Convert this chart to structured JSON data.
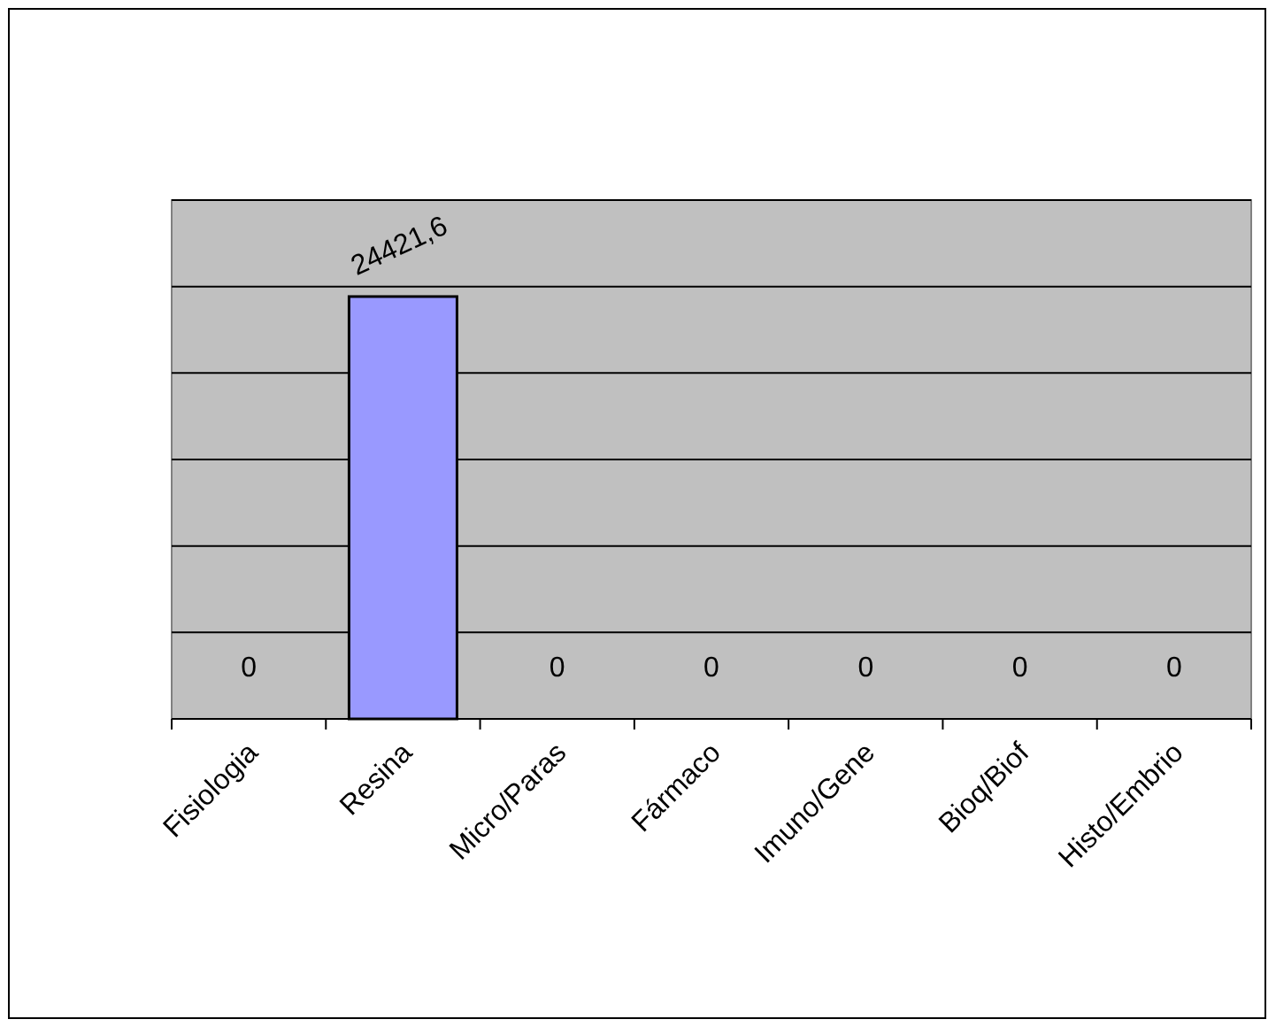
{
  "chart_data": {
    "type": "bar",
    "categories": [
      "Fisiologia",
      "Resina",
      "Micro/Paras",
      "Fármaco",
      "Imuno/Gene",
      "Bioq/Biof",
      "Histo/Embrio"
    ],
    "values": [
      0,
      24421.6,
      0,
      0,
      0,
      0,
      0
    ],
    "value_labels": [
      "0",
      "24421,6",
      "0",
      "0",
      "0",
      "0",
      "0"
    ],
    "color": "#9999ff",
    "ylim": [
      0,
      30000
    ],
    "yticks": [
      {
        "value": 0,
        "label": null
      },
      {
        "value": 5000,
        "label": null
      },
      {
        "value": 10000,
        "label": null
      },
      {
        "value": 15000,
        "label": null
      },
      {
        "value": 20000,
        "label": null
      },
      {
        "value": 25000,
        "label": null
      },
      {
        "value": 30000,
        "label": null
      }
    ],
    "tick_labels": "x",
    "grid": "y"
  }
}
